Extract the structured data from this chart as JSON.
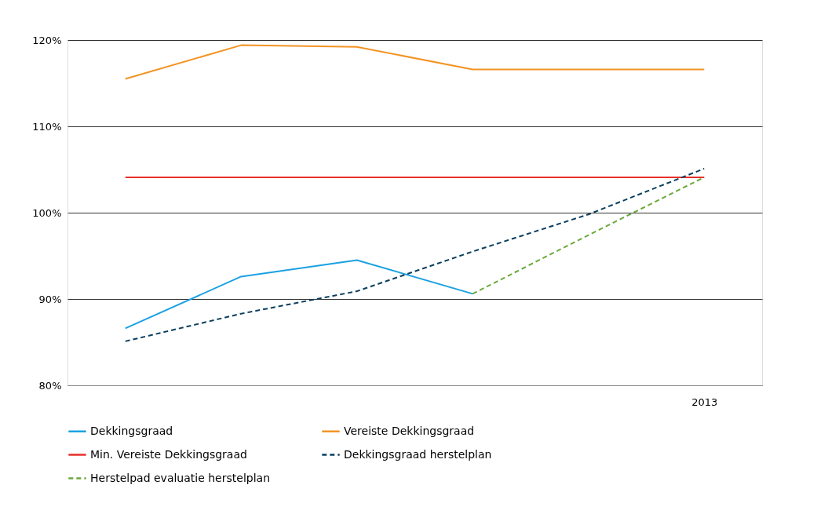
{
  "chart_data": {
    "type": "line",
    "categories": [
      null,
      null,
      null,
      null,
      null,
      "2013"
    ],
    "series": [
      {
        "name": "Dekkingsgraad",
        "color": "#1ba1e2",
        "line_style": "solid",
        "values": [
          86.6,
          92.6,
          94.5,
          90.6,
          null,
          null
        ]
      },
      {
        "name": "Vereiste Dekkingsgraad",
        "color": "#f39323",
        "line_style": "solid",
        "values": [
          115.5,
          119.4,
          119.2,
          116.6,
          116.6,
          116.6
        ]
      },
      {
        "name": "Min. Vereiste Dekkingsgraad",
        "color": "#e8302a",
        "line_style": "solid",
        "values": [
          104.1,
          104.1,
          104.1,
          104.1,
          104.1,
          104.1
        ]
      },
      {
        "name": "Dekkingsgraad herstelplan",
        "color": "#0b3f5e",
        "line_style": "dashed",
        "values": [
          85.1,
          88.3,
          90.9,
          95.5,
          99.8,
          105.1
        ]
      },
      {
        "name": "Herstelpad evaluatie herstelplan",
        "color": "#6aa83a",
        "line_style": "dashed",
        "values": [
          null,
          null,
          null,
          90.6,
          97.4,
          104.1
        ]
      }
    ],
    "ylim": [
      80,
      120
    ],
    "yticks": [
      {
        "value": 80,
        "label": "80%"
      },
      {
        "value": 90,
        "label": "90%"
      },
      {
        "value": 100,
        "label": "100%"
      },
      {
        "value": 110,
        "label": "110%"
      },
      {
        "value": 120,
        "label": "120%"
      }
    ],
    "grid": "y",
    "legend": "bottom",
    "marker": "none"
  }
}
